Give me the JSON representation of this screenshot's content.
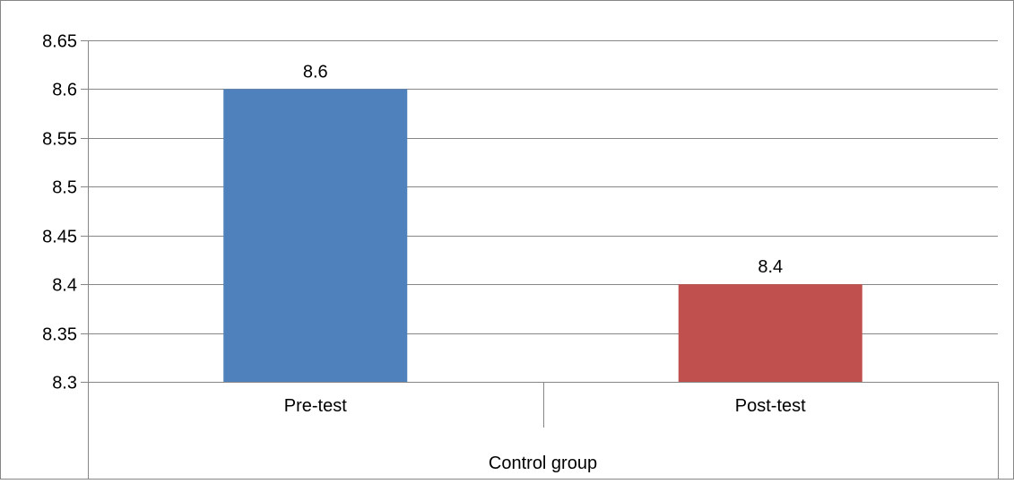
{
  "chart_data": {
    "type": "bar",
    "categories": [
      "Pre-test",
      "Post-test"
    ],
    "group_label": "Control group",
    "values": [
      8.6,
      8.4
    ],
    "data_labels": [
      "8.6",
      "8.4"
    ],
    "bar_colors": [
      "#4F81BD",
      "#C0504D"
    ],
    "ylim": [
      8.3,
      8.65
    ],
    "yticks": [
      8.3,
      8.35,
      8.4,
      8.45,
      8.5,
      8.55,
      8.6,
      8.65
    ],
    "ytick_labels": [
      "8.3",
      "8.35",
      "8.4",
      "8.45",
      "8.5",
      "8.55",
      "8.6",
      "8.65"
    ],
    "grid": true,
    "legend": "none",
    "title": "",
    "xlabel": "",
    "ylabel": ""
  },
  "colors": {
    "gridline": "#868686",
    "axis": "#868686",
    "border": "#868686",
    "text": "#000000"
  }
}
